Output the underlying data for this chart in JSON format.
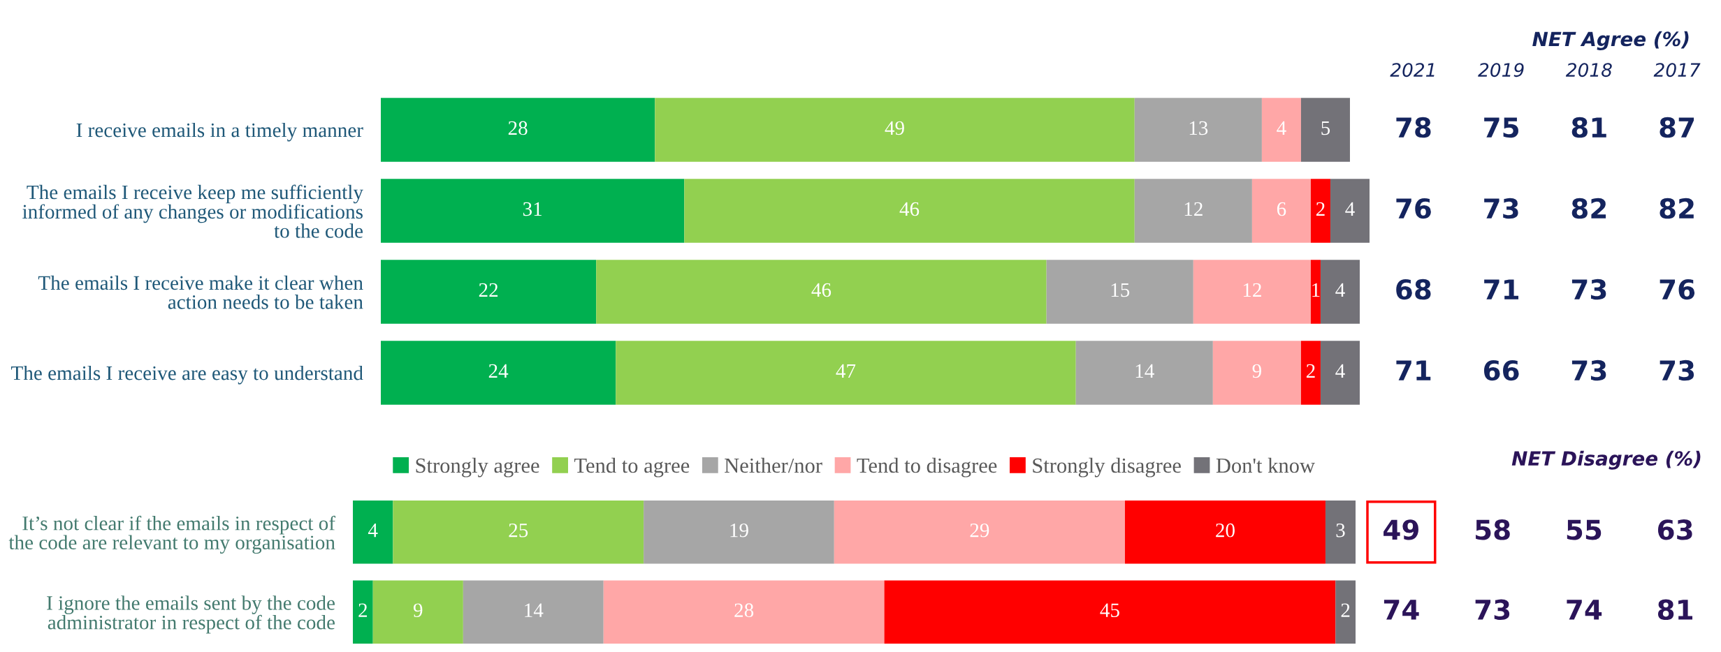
{
  "chart_data": [
    {
      "type": "bar",
      "orientation": "horizontal",
      "stacked": true,
      "data_labels": true,
      "legend": false,
      "categories": [
        "I receive emails in a timely manner",
        "The emails I receive keep me sufficiently\ninformed of any changes or modifications\nto the code",
        "The emails I receive make it clear when\naction needs to be taken",
        "The emails I receive are easy to understand"
      ],
      "series": [
        {
          "color": "#00b050",
          "values": [
            28,
            31,
            22,
            24
          ]
        },
        {
          "color": "#92d050",
          "values": [
            49,
            46,
            46,
            47
          ]
        },
        {
          "color": "#a6a6a6",
          "values": [
            13,
            12,
            15,
            14
          ]
        },
        {
          "color": "#ffa7a7",
          "values": [
            4,
            6,
            12,
            9
          ]
        },
        {
          "color": "#ff0000",
          "values": [
            null,
            2,
            1,
            2
          ]
        },
        {
          "color": "#737278",
          "values": [
            5,
            4,
            4,
            4
          ]
        }
      ]
    },
    {
      "type": "heatmap",
      "data_labels": true,
      "title": "NET Agree (%)",
      "categories": [
        "2021",
        "2019",
        "2018",
        "2017"
      ],
      "y_categories": [
        null,
        null,
        null,
        null
      ],
      "cells": [
        [
          78,
          75,
          81,
          87
        ],
        [
          76,
          73,
          82,
          82
        ],
        [
          68,
          71,
          73,
          76
        ],
        [
          71,
          66,
          73,
          73
        ]
      ]
    },
    {
      "type": "bar",
      "orientation": "horizontal",
      "stacked": true,
      "data_labels": true,
      "legend": "top",
      "categories": [
        "It’s not clear if the emails in respect of\nthe code are relevant to my organisation",
        "I ignore the emails sent by the code\nadministrator in respect of the code"
      ],
      "series": [
        {
          "name": "Strongly agree",
          "color": "#00b050",
          "values": [
            4,
            2
          ]
        },
        {
          "name": "Tend to agree",
          "color": "#92d050",
          "values": [
            25,
            9
          ]
        },
        {
          "name": "Neither/nor",
          "color": "#a6a6a6",
          "values": [
            19,
            14
          ]
        },
        {
          "name": "Tend to disagree",
          "color": "#ffa7a7",
          "values": [
            29,
            28
          ]
        },
        {
          "name": "Strongly disagree",
          "color": "#ff0000",
          "values": [
            20,
            45
          ]
        },
        {
          "name": "Don't know",
          "color": "#737278",
          "values": [
            3,
            2
          ]
        }
      ]
    },
    {
      "type": "heatmap",
      "data_labels": true,
      "title": "NET Disagree (%)",
      "categories": [
        null,
        null,
        null,
        null
      ],
      "y_categories": [
        null,
        null
      ],
      "cells": [
        [
          49,
          58,
          55,
          63
        ],
        [
          74,
          73,
          74,
          81
        ]
      ]
    }
  ]
}
